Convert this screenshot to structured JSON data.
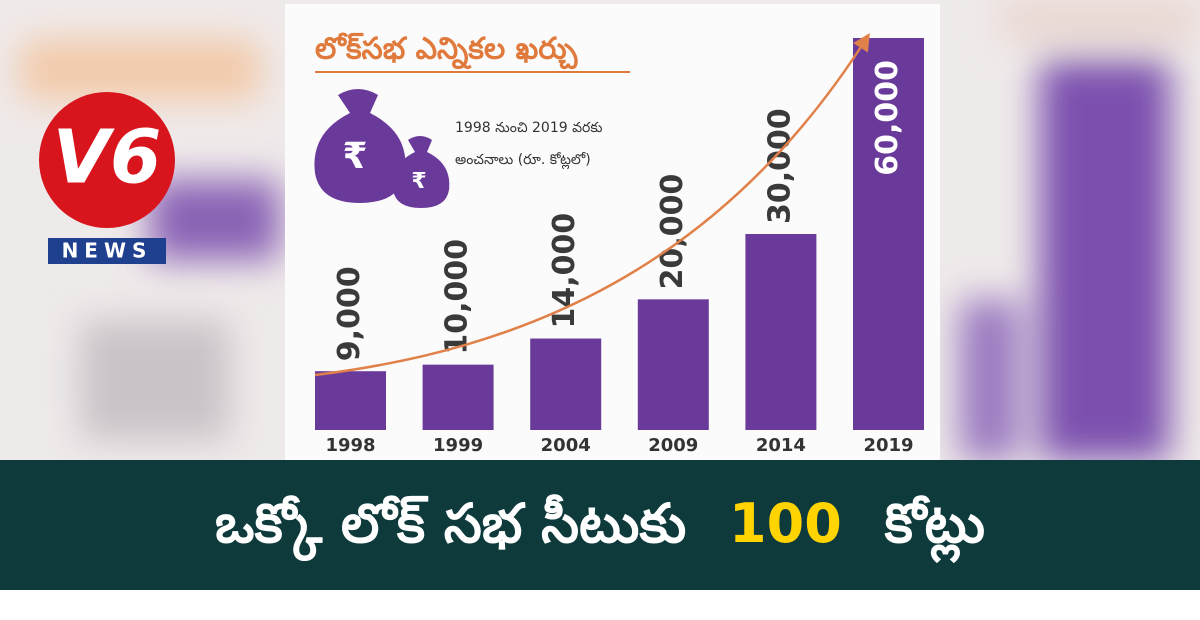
{
  "chart_data": {
    "type": "bar",
    "title": "లోక్‌సభ ఎన్నికల ఖర్చు",
    "subtitle": [
      "1998 నుంచి 2019 వరకు",
      "అంచనాలు (రూ. కోట్లలో)"
    ],
    "categories": [
      "1998",
      "1999",
      "2004",
      "2009",
      "2014",
      "2019"
    ],
    "values": [
      9000,
      10000,
      14000,
      20000,
      30000,
      60000
    ],
    "value_labels": [
      "9,000",
      "10,000",
      "14,000",
      "20,000",
      "30,000",
      "60,000"
    ],
    "color": "#6a3a9a"
  },
  "logo": {
    "mark": "V6",
    "text": "NEWS"
  },
  "headline": {
    "before": "ఒక్కో లోక్ సభ సీటుకు",
    "number": "100",
    "after": "కోట్లు"
  }
}
